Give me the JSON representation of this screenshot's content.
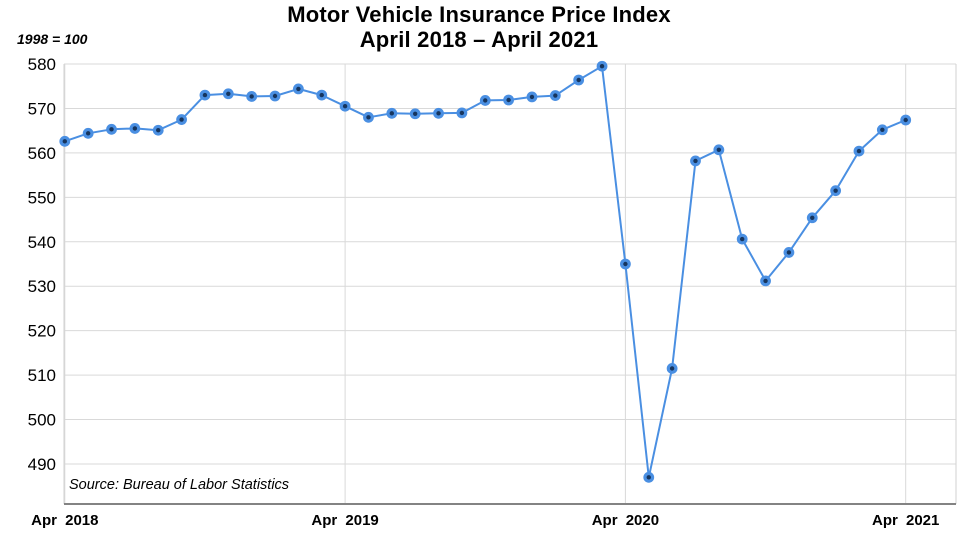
{
  "chart_data": {
    "type": "line",
    "title": "Motor Vehicle Insurance Price Index",
    "subtitle": "April 2018 – April 2021",
    "index_note": "1998 = 100",
    "source": "Source: Bureau of Labor Statistics",
    "x": [
      "Apr 2018",
      "May 2018",
      "Jun 2018",
      "Jul 2018",
      "Aug 2018",
      "Sep 2018",
      "Oct 2018",
      "Nov 2018",
      "Dec 2018",
      "Jan 2019",
      "Feb 2019",
      "Mar 2019",
      "Apr 2019",
      "May 2019",
      "Jun 2019",
      "Jul 2019",
      "Aug 2019",
      "Sep 2019",
      "Oct 2019",
      "Nov 2019",
      "Dec 2019",
      "Jan 2020",
      "Feb 2020",
      "Mar 2020",
      "Apr 2020",
      "May 2020",
      "Jun 2020",
      "Jul 2020",
      "Aug 2020",
      "Sep 2020",
      "Oct 2020",
      "Nov 2020",
      "Dec 2020",
      "Jan 2021",
      "Feb 2021",
      "Mar 2021",
      "Apr 2021"
    ],
    "values": [
      562.6,
      564.4,
      565.3,
      565.5,
      565.1,
      567.5,
      573.0,
      573.3,
      572.7,
      572.8,
      574.4,
      573.0,
      570.5,
      568.0,
      568.9,
      568.8,
      568.9,
      569.0,
      571.8,
      571.9,
      572.6,
      572.9,
      576.4,
      579.5,
      535.0,
      487.0,
      511.5,
      558.2,
      560.7,
      540.6,
      531.2,
      537.6,
      545.4,
      551.5,
      560.4,
      565.2,
      567.4
    ],
    "x_ticks": [
      {
        "index": 0,
        "label": "Apr 2018"
      },
      {
        "index": 12,
        "label": "Apr 2019"
      },
      {
        "index": 24,
        "label": "Apr 2020"
      },
      {
        "index": 36,
        "label": "Apr 2021"
      }
    ],
    "y_ticks": [
      490,
      500,
      510,
      520,
      530,
      540,
      550,
      560,
      570,
      580
    ],
    "ylim": [
      481,
      580
    ],
    "grid": true,
    "legend": "none",
    "colors": {
      "line": "#4a8fe2",
      "marker": "#4a8fe2",
      "marker_center": "#16355e",
      "grid": "#d9d9d9",
      "border": "#d2d2d2",
      "axis": "#838383",
      "text": "#000000"
    }
  }
}
